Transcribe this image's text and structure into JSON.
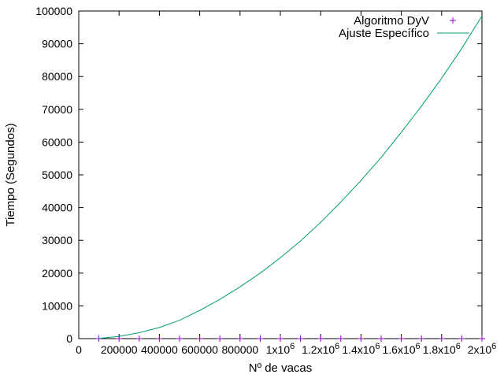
{
  "chart_data": {
    "type": "line",
    "xlabel": "Nº de vacas",
    "ylabel": "Tiempo (Segundos)",
    "xlim": [
      0,
      2000000
    ],
    "ylim": [
      0,
      100000
    ],
    "x_ticks": [
      {
        "value": 0,
        "label": "0"
      },
      {
        "value": 200000,
        "label": "200000"
      },
      {
        "value": 400000,
        "label": "400000"
      },
      {
        "value": 600000,
        "label": "600000"
      },
      {
        "value": 800000,
        "label": "800000"
      },
      {
        "value": 1000000,
        "label": "1x10",
        "sup": "6"
      },
      {
        "value": 1200000,
        "label": "1.2x10",
        "sup": "6"
      },
      {
        "value": 1400000,
        "label": "1.4x10",
        "sup": "6"
      },
      {
        "value": 1600000,
        "label": "1.6x10",
        "sup": "6"
      },
      {
        "value": 1800000,
        "label": "1.8x10",
        "sup": "6"
      },
      {
        "value": 2000000,
        "label": "2x10",
        "sup": "6"
      }
    ],
    "y_ticks": [
      {
        "value": 0,
        "label": "0"
      },
      {
        "value": 10000,
        "label": "10000"
      },
      {
        "value": 20000,
        "label": "20000"
      },
      {
        "value": 30000,
        "label": "30000"
      },
      {
        "value": 40000,
        "label": "40000"
      },
      {
        "value": 50000,
        "label": "50000"
      },
      {
        "value": 60000,
        "label": "60000"
      },
      {
        "value": 70000,
        "label": "70000"
      },
      {
        "value": 80000,
        "label": "80000"
      },
      {
        "value": 90000,
        "label": "90000"
      },
      {
        "value": 100000,
        "label": "100000"
      }
    ],
    "legend_position": "top-right",
    "grid": false,
    "series": [
      {
        "name": "Algoritmo DyV",
        "style": "points",
        "marker": "+",
        "color": "#9400d3",
        "x": [
          100000,
          200000,
          300000,
          400000,
          500000,
          600000,
          700000,
          800000,
          900000,
          1000000,
          1100000,
          1200000,
          1300000,
          1400000,
          1500000,
          1600000,
          1700000,
          1800000,
          1900000,
          2000000
        ],
        "y": [
          0,
          0,
          0,
          0,
          0,
          0,
          0,
          0,
          0,
          0,
          0,
          0,
          0,
          0,
          0,
          0,
          0,
          0,
          0,
          0
        ]
      },
      {
        "name": "Ajuste Específico",
        "style": "line",
        "color": "#009e73",
        "x": [
          100000,
          200000,
          300000,
          400000,
          500000,
          600000,
          700000,
          800000,
          900000,
          1000000,
          1100000,
          1200000,
          1300000,
          1400000,
          1500000,
          1600000,
          1700000,
          1800000,
          1900000,
          2000000
        ],
        "y": [
          60,
          700,
          1800,
          3400,
          5600,
          8600,
          12000,
          15800,
          20000,
          24700,
          29800,
          35500,
          41700,
          48300,
          55300,
          63000,
          71000,
          79500,
          88600,
          98500
        ]
      }
    ]
  }
}
